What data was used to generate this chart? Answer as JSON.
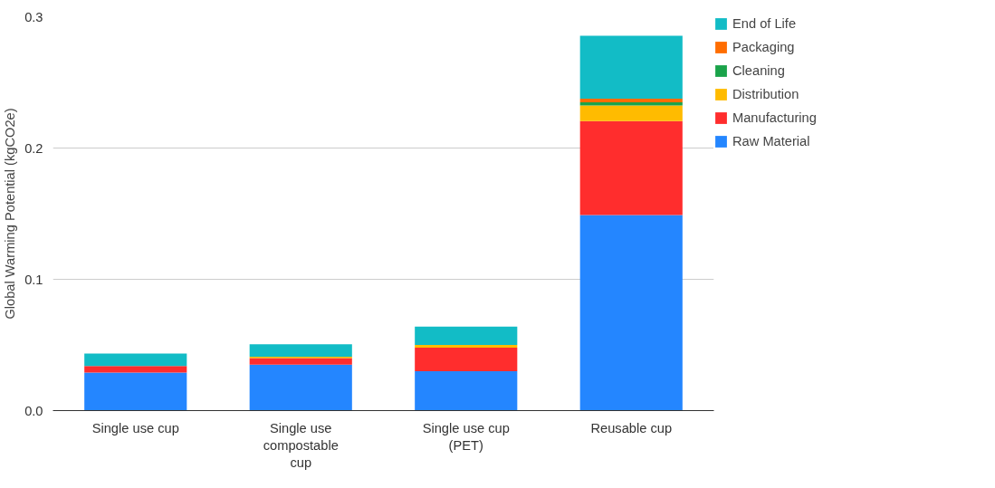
{
  "chart_data": {
    "type": "bar",
    "stacked": true,
    "ylabel": "Global Warming Potential (kgCO2e)",
    "categories": [
      "Single use cup",
      "Single use compostable cup",
      "Single use cup (PET)",
      "Reusable cup"
    ],
    "series": [
      {
        "name": "Raw Material",
        "color": "#2486ff",
        "values": [
          0.029,
          0.035,
          0.03,
          0.149
        ]
      },
      {
        "name": "Manufacturing",
        "color": "#ff2d2d",
        "values": [
          0.005,
          0.005,
          0.018,
          0.0715
        ]
      },
      {
        "name": "Distribution",
        "color": "#ffbb00",
        "values": [
          0,
          0.001,
          0.002,
          0.012
        ]
      },
      {
        "name": "Cleaning",
        "color": "#1aa34a",
        "values": [
          0,
          0,
          0,
          0.0024
        ]
      },
      {
        "name": "Packaging",
        "color": "#ff6d01",
        "values": [
          0,
          0,
          0,
          0.0027
        ]
      },
      {
        "name": "End of Life",
        "color": "#12bcc6",
        "values": [
          0.0095,
          0.0095,
          0.014,
          0.048
        ]
      }
    ],
    "ylim": [
      0,
      0.3
    ],
    "yticks": [
      {
        "value": 0,
        "label": "0.0"
      },
      {
        "value": 0.1,
        "label": "0.1"
      },
      {
        "value": 0.2,
        "label": "0.2"
      },
      {
        "value": 0.3,
        "label": "0.3"
      }
    ],
    "grid": "y",
    "legend": "right"
  }
}
